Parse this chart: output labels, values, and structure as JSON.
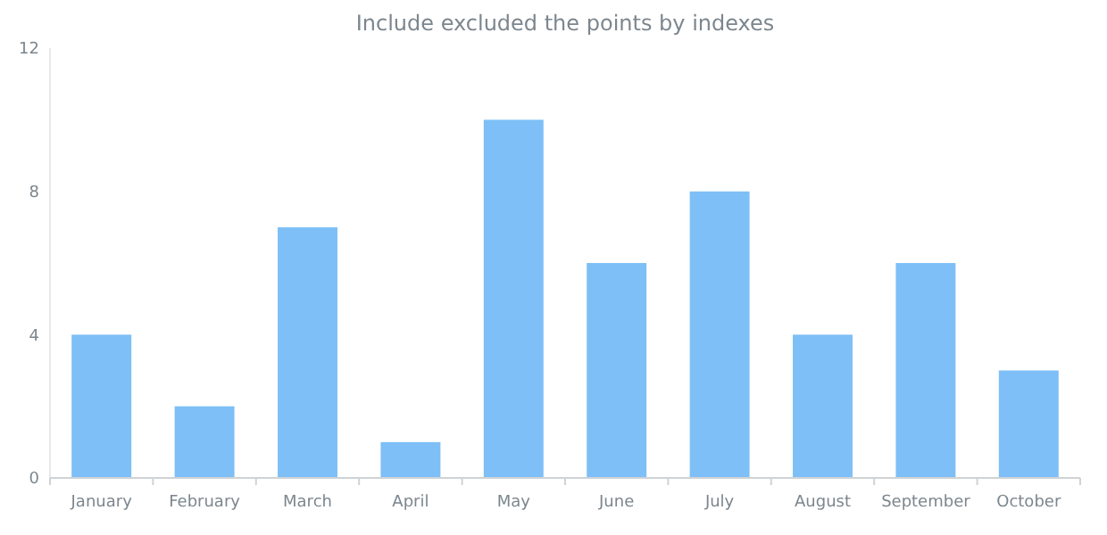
{
  "chart_data": {
    "type": "bar",
    "title": "Include excluded the points by indexes",
    "categories": [
      "January",
      "February",
      "March",
      "April",
      "May",
      "June",
      "July",
      "August",
      "September",
      "October"
    ],
    "values": [
      4,
      2,
      7,
      1,
      10,
      6,
      8,
      4,
      6,
      3
    ],
    "color": "#7dbff6",
    "ylim": [
      0,
      12
    ],
    "yticks": [
      0,
      4,
      8,
      12
    ],
    "grid": false
  }
}
